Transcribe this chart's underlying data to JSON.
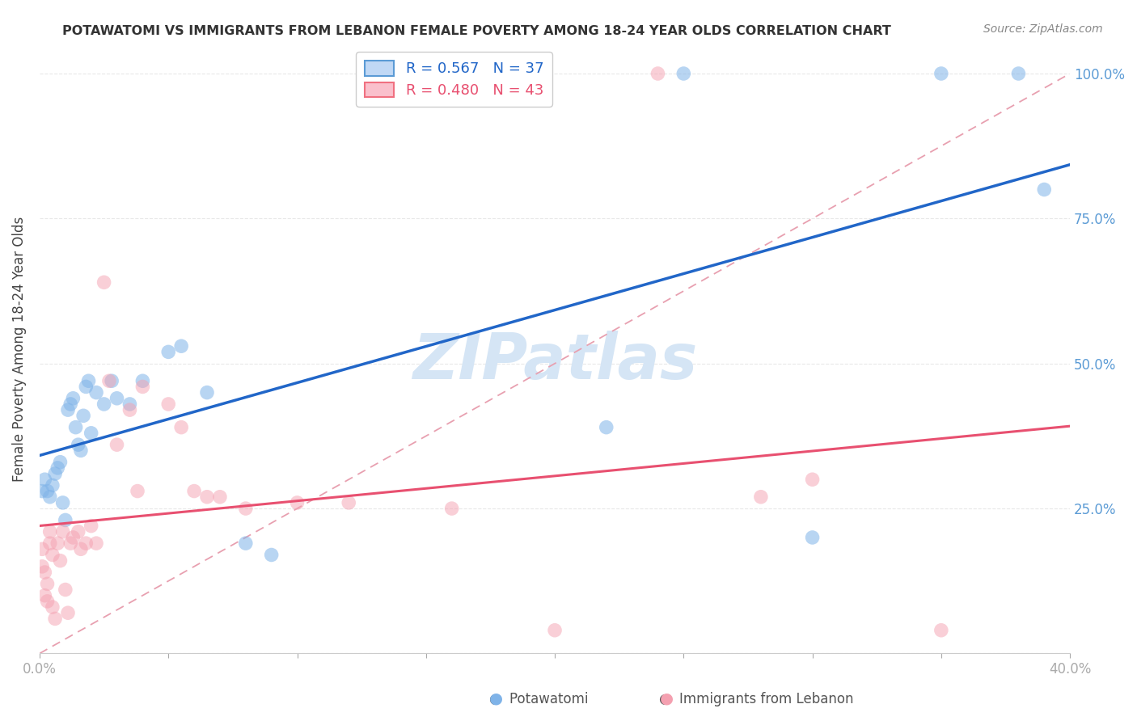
{
  "title": "POTAWATOMI VS IMMIGRANTS FROM LEBANON FEMALE POVERTY AMONG 18-24 YEAR OLDS CORRELATION CHART",
  "source": "Source: ZipAtlas.com",
  "ylabel": "Female Poverty Among 18-24 Year Olds",
  "xlim": [
    0.0,
    0.4
  ],
  "ylim": [
    0.0,
    1.05
  ],
  "blue_r": "0.567",
  "blue_n": "37",
  "pink_r": "0.480",
  "pink_n": "43",
  "potawatomi_x": [
    0.001,
    0.002,
    0.003,
    0.004,
    0.005,
    0.006,
    0.007,
    0.008,
    0.009,
    0.01,
    0.011,
    0.012,
    0.013,
    0.014,
    0.015,
    0.016,
    0.017,
    0.018,
    0.019,
    0.02,
    0.022,
    0.025,
    0.028,
    0.03,
    0.035,
    0.04,
    0.05,
    0.055,
    0.065,
    0.08,
    0.09,
    0.22,
    0.25,
    0.3,
    0.35,
    0.38,
    0.39
  ],
  "potawatomi_y": [
    0.28,
    0.3,
    0.28,
    0.27,
    0.29,
    0.31,
    0.32,
    0.33,
    0.26,
    0.23,
    0.42,
    0.43,
    0.44,
    0.39,
    0.36,
    0.35,
    0.41,
    0.46,
    0.47,
    0.38,
    0.45,
    0.43,
    0.47,
    0.44,
    0.43,
    0.47,
    0.52,
    0.53,
    0.45,
    0.19,
    0.17,
    0.39,
    1.0,
    0.2,
    1.0,
    1.0,
    0.8
  ],
  "lebanon_x": [
    0.001,
    0.001,
    0.002,
    0.002,
    0.003,
    0.003,
    0.004,
    0.004,
    0.005,
    0.005,
    0.006,
    0.007,
    0.008,
    0.009,
    0.01,
    0.011,
    0.012,
    0.013,
    0.015,
    0.016,
    0.018,
    0.02,
    0.022,
    0.025,
    0.027,
    0.03,
    0.035,
    0.038,
    0.04,
    0.05,
    0.055,
    0.06,
    0.065,
    0.07,
    0.08,
    0.1,
    0.12,
    0.16,
    0.2,
    0.24,
    0.28,
    0.3,
    0.35
  ],
  "lebanon_y": [
    0.18,
    0.15,
    0.14,
    0.1,
    0.12,
    0.09,
    0.21,
    0.19,
    0.17,
    0.08,
    0.06,
    0.19,
    0.16,
    0.21,
    0.11,
    0.07,
    0.19,
    0.2,
    0.21,
    0.18,
    0.19,
    0.22,
    0.19,
    0.64,
    0.47,
    0.36,
    0.42,
    0.28,
    0.46,
    0.43,
    0.39,
    0.28,
    0.27,
    0.27,
    0.25,
    0.26,
    0.26,
    0.25,
    0.04,
    1.0,
    0.27,
    0.3,
    0.04
  ],
  "blue_scatter_color": "#7fb3e8",
  "pink_scatter_color": "#f4a0b0",
  "blue_line_color": "#2166c8",
  "pink_line_color": "#e85070",
  "dash_line_color": "#e8a0b0",
  "watermark_color": "#d5e5f5",
  "background_color": "#ffffff",
  "grid_color": "#e8e8e8",
  "right_tick_color": "#5b9bd5",
  "title_color": "#333333",
  "source_color": "#888888"
}
